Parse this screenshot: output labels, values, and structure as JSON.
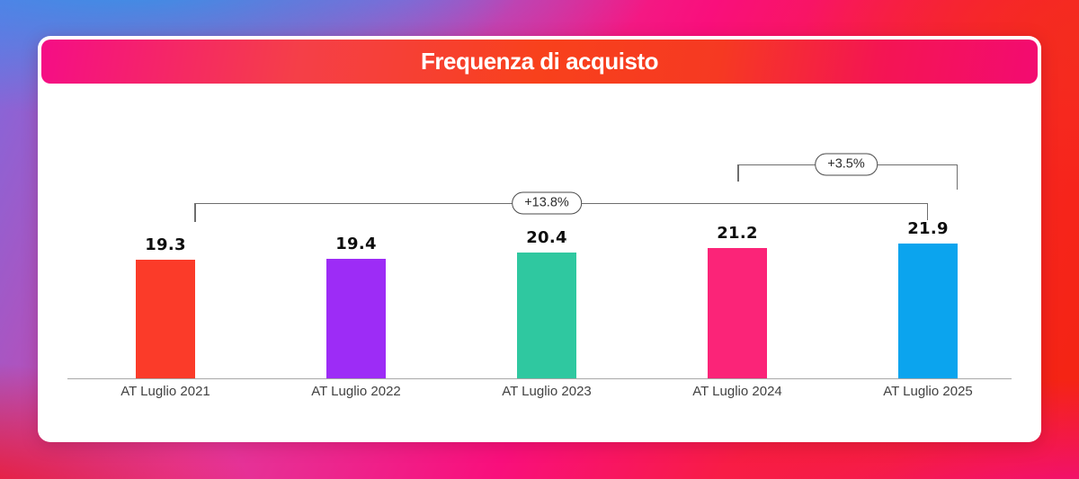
{
  "header": {
    "title": "Frequenza di acquisto"
  },
  "chart_data": {
    "type": "bar",
    "title": "Frequenza di acquisto",
    "categories": [
      "AT Luglio 2021",
      "AT Luglio 2022",
      "AT Luglio 2023",
      "AT Luglio 2024",
      "AT Luglio 2025"
    ],
    "values": [
      19.3,
      19.4,
      20.4,
      21.2,
      21.9
    ],
    "value_labels": [
      "19.3",
      "19.4",
      "20.4",
      "21.2",
      "21.9"
    ],
    "bar_colors": [
      "#fb3b29",
      "#9d2cf6",
      "#2fc8a0",
      "#fb2478",
      "#0ba4ee"
    ],
    "xlabel": "",
    "ylabel": "",
    "ylim": [
      0,
      22
    ],
    "grid": false,
    "legend": false,
    "annotations": [
      {
        "label": "+13.8%",
        "from": "AT Luglio 2021",
        "to": "AT Luglio 2025"
      },
      {
        "label": "+3.5%",
        "from": "AT Luglio 2024",
        "to": "AT Luglio 2025"
      }
    ]
  },
  "colors": {
    "card_background": "#ffffff",
    "header_gradient_left": "#f50d86",
    "header_gradient_mid": "#f8411c",
    "header_gradient_right": "#f30b71",
    "axis_line": "#a9a9a9",
    "bracket_line": "#6e6e6e",
    "value_text": "#0d0d0d",
    "category_text": "#414141"
  }
}
